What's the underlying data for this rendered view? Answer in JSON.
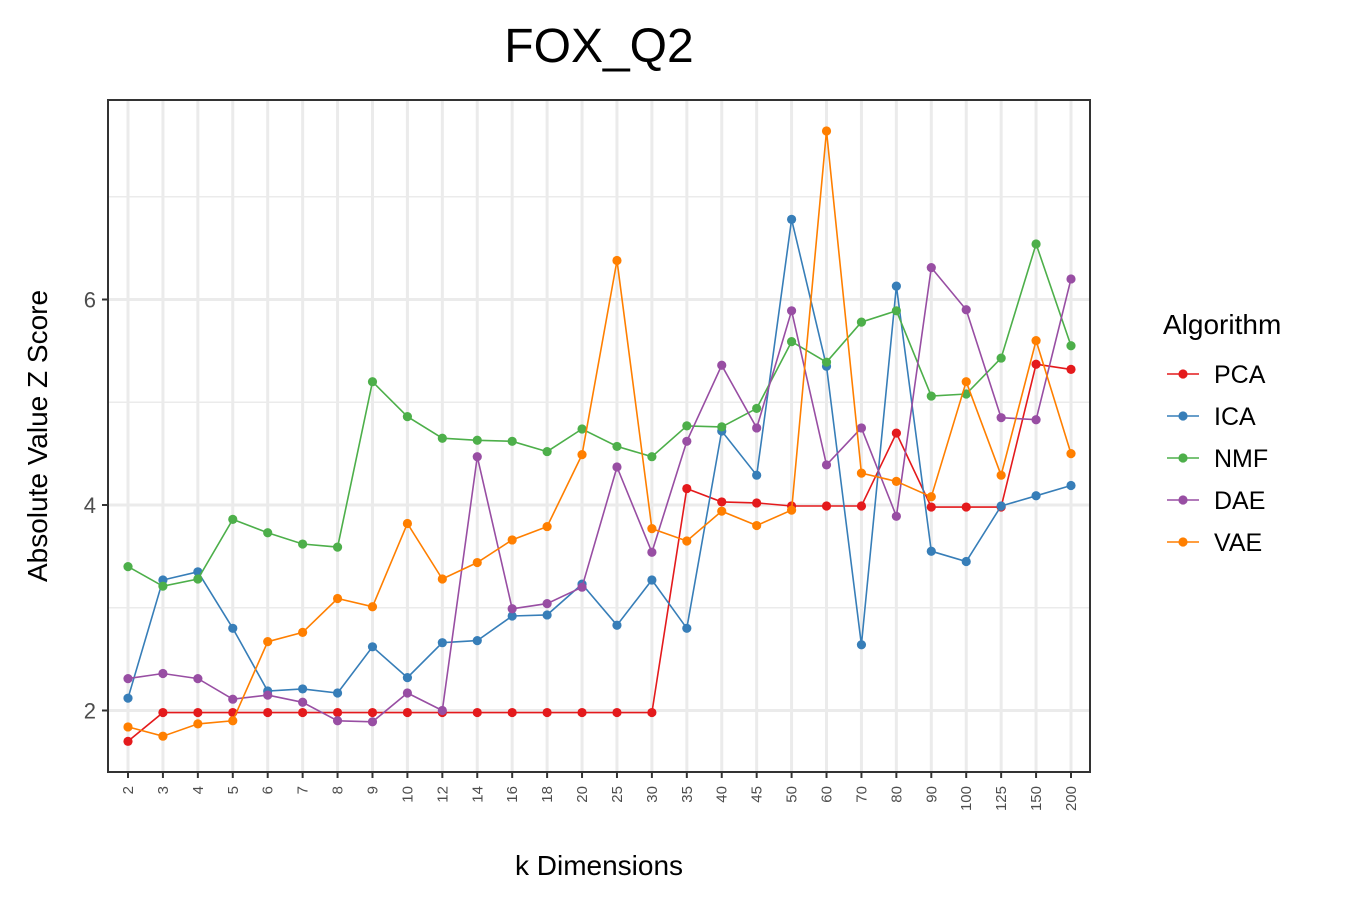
{
  "chart_data": {
    "type": "line",
    "title": "FOX_Q2",
    "xlabel": "k Dimensions",
    "ylabel": "Absolute Value Z Score",
    "categories": [
      "2",
      "3",
      "4",
      "5",
      "6",
      "7",
      "8",
      "9",
      "10",
      "12",
      "14",
      "16",
      "18",
      "20",
      "25",
      "30",
      "35",
      "40",
      "45",
      "50",
      "60",
      "70",
      "80",
      "90",
      "100",
      "125",
      "150",
      "200"
    ],
    "ylim": [
      1.4,
      7.9
    ],
    "yticks": [
      2,
      4,
      6
    ],
    "grid": true,
    "legend": {
      "title": "Algorithm",
      "position": "right"
    },
    "series": [
      {
        "name": "PCA",
        "color": "#e41a1c",
        "values": [
          1.7,
          1.98,
          1.98,
          1.98,
          1.98,
          1.98,
          1.98,
          1.98,
          1.98,
          1.98,
          1.98,
          1.98,
          1.98,
          1.98,
          1.98,
          1.98,
          4.16,
          4.03,
          4.02,
          3.99,
          3.99,
          3.99,
          4.7,
          3.98,
          3.98,
          3.98,
          5.37,
          5.32
        ]
      },
      {
        "name": "ICA",
        "color": "#377eb8",
        "values": [
          2.12,
          3.27,
          3.35,
          2.8,
          2.19,
          2.21,
          2.17,
          2.62,
          2.32,
          2.66,
          2.68,
          2.92,
          2.93,
          3.23,
          2.83,
          3.27,
          2.8,
          4.72,
          4.29,
          6.78,
          5.35,
          2.64,
          6.13,
          3.55,
          3.45,
          3.99,
          4.09,
          4.19
        ]
      },
      {
        "name": "NMF",
        "color": "#4daf4a",
        "values": [
          3.4,
          3.21,
          3.28,
          3.86,
          3.73,
          3.62,
          3.59,
          5.2,
          4.86,
          4.65,
          4.63,
          4.62,
          4.52,
          4.74,
          4.57,
          4.47,
          4.77,
          4.76,
          4.94,
          5.59,
          5.39,
          5.78,
          5.89,
          5.06,
          5.08,
          5.43,
          6.54,
          5.55
        ]
      },
      {
        "name": "DAE",
        "color": "#984ea3",
        "values": [
          2.31,
          2.36,
          2.31,
          2.11,
          2.15,
          2.08,
          1.9,
          1.89,
          2.17,
          2.0,
          4.47,
          2.99,
          3.04,
          3.2,
          4.37,
          3.54,
          4.62,
          5.36,
          4.75,
          5.89,
          4.39,
          4.75,
          3.89,
          6.31,
          5.9,
          4.85,
          4.83,
          6.2
        ]
      },
      {
        "name": "VAE",
        "color": "#ff7f00",
        "values": [
          1.84,
          1.75,
          1.87,
          1.9,
          2.67,
          2.76,
          3.09,
          3.01,
          3.82,
          3.28,
          3.44,
          3.66,
          3.79,
          4.49,
          6.38,
          3.77,
          3.65,
          3.94,
          3.8,
          3.95,
          7.64,
          4.31,
          4.23,
          4.08,
          5.2,
          4.29,
          5.6,
          4.5
        ]
      }
    ]
  }
}
